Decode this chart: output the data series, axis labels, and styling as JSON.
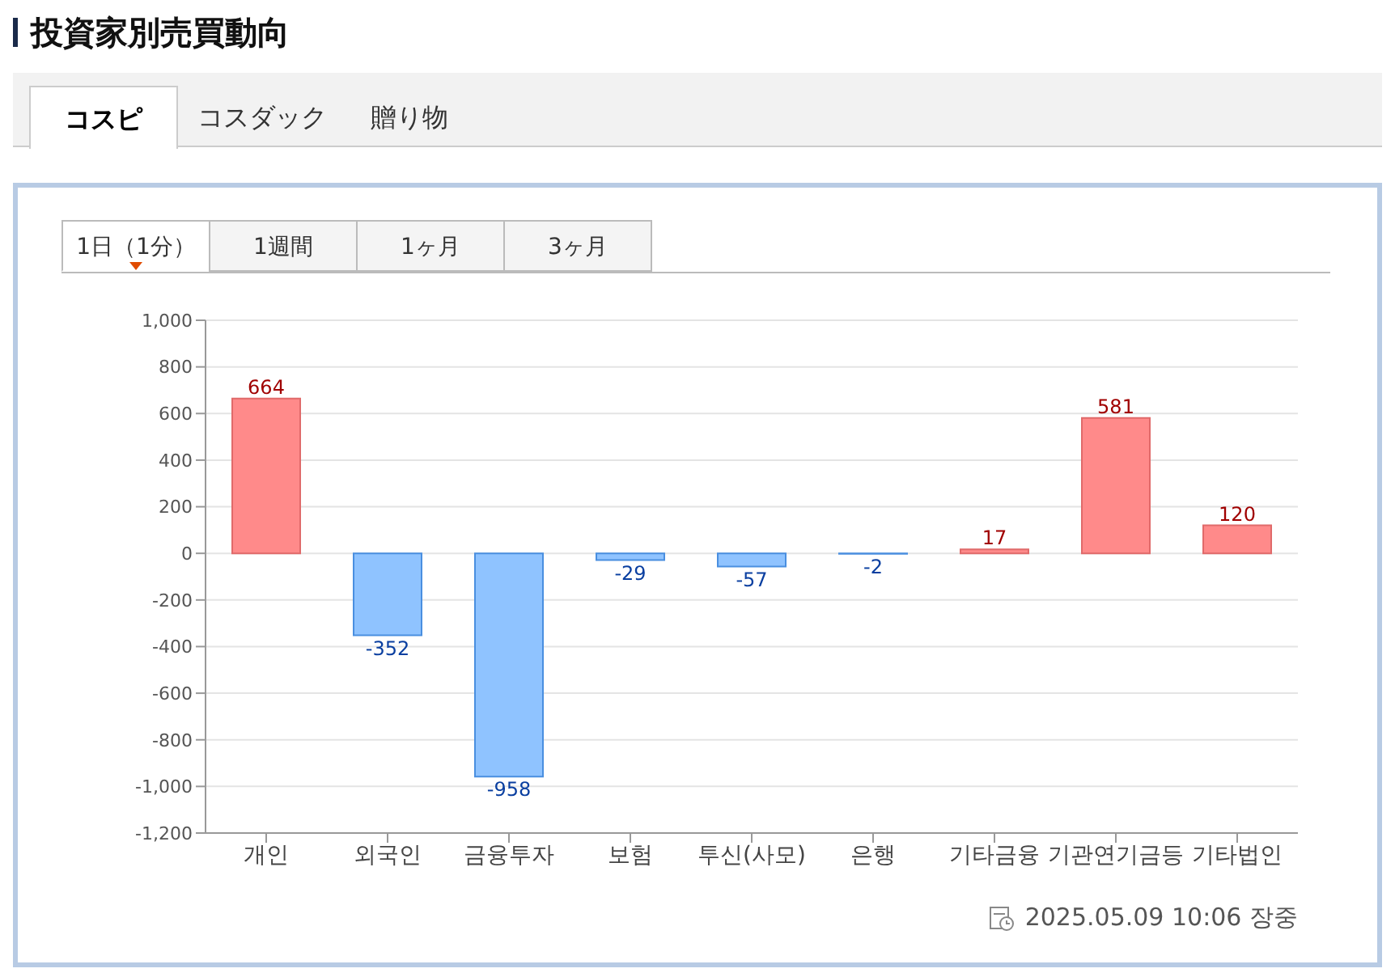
{
  "chart_data": {
    "type": "bar",
    "title": "投資家別売買動向",
    "categories": [
      "개인",
      "외국인",
      "금융투자",
      "보험",
      "투신(사모)",
      "은행",
      "기타금융",
      "기관연기금등",
      "기타법인"
    ],
    "values": [
      664,
      -352,
      -958,
      -29,
      -57,
      -2,
      17,
      581,
      120
    ],
    "colors": [
      "#ff8a8a",
      "#8fc3ff",
      "#8fc3ff",
      "#8fc3ff",
      "#8fc3ff",
      "#8fc3ff",
      "#ff8a8a",
      "#ff8a8a",
      "#ff8a8a"
    ],
    "ylim": [
      -1200,
      1000
    ],
    "yticks": [
      {
        "value": -1200,
        "label": "-1,200"
      },
      {
        "value": -1000,
        "label": "-1,000"
      },
      -800,
      -600,
      -400,
      -200,
      0,
      200,
      400,
      600,
      800,
      {
        "value": 1000,
        "label": "1,000"
      }
    ],
    "grid": "y",
    "data_labels": true,
    "annotations": [
      "コスピ",
      "コスダック",
      "贈り物",
      "1日（1分）",
      "1週間",
      "1ヶ月",
      "3ヶ月",
      "2025.05.09 10:06 장중"
    ]
  }
}
